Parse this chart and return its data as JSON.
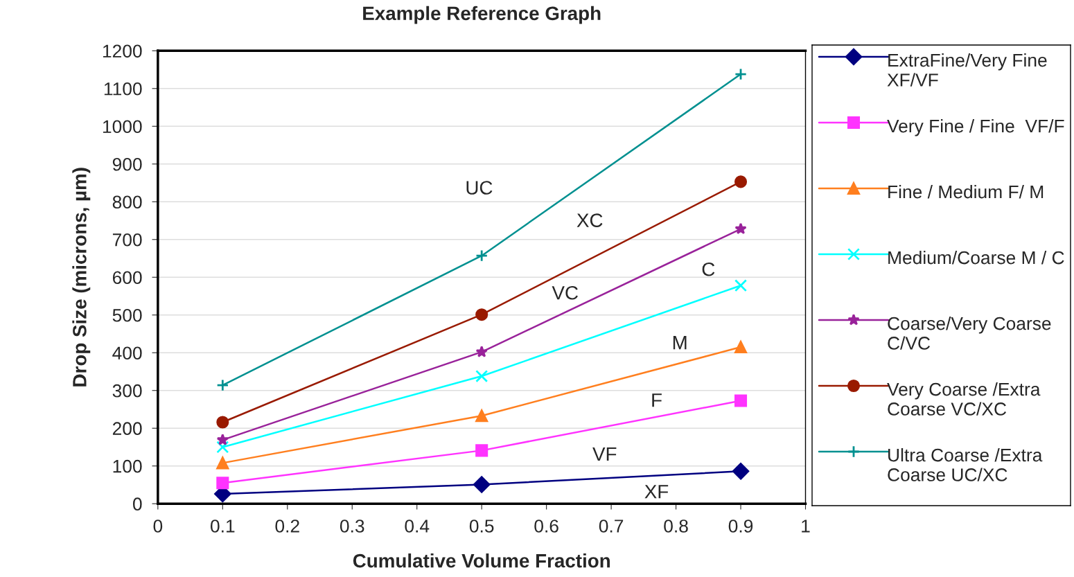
{
  "chart_data": {
    "type": "line",
    "title": "Example Reference Graph",
    "xlabel": "Cumulative Volume Fraction",
    "ylabel": "Drop Size (microns, µm)",
    "x": [
      0.1,
      0.5,
      0.9
    ],
    "series": [
      {
        "name": "ExtraFine/Very Fine XF/VF",
        "color": "#000080",
        "marker": "diamond",
        "values": [
          26,
          51,
          86
        ]
      },
      {
        "name": "Very Fine / Fine  VF/F",
        "color": "#ff33ff",
        "marker": "square",
        "values": [
          55,
          141,
          273
        ]
      },
      {
        "name": "Fine / Medium F/ M",
        "color": "#ff7f1f",
        "marker": "triangle",
        "values": [
          108,
          233,
          415
        ]
      },
      {
        "name": "Medium/Coarse M / C",
        "color": "#00ffff",
        "marker": "cross",
        "values": [
          150,
          338,
          578
        ]
      },
      {
        "name": "Coarse/Very Coarse  C/VC",
        "color": "#99229a",
        "marker": "star",
        "values": [
          169,
          402,
          728
        ]
      },
      {
        "name": "Very Coarse /Extra Coarse VC/XC",
        "color": "#991a00",
        "marker": "circle",
        "values": [
          216,
          501,
          853
        ]
      },
      {
        "name": "Ultra Coarse /Extra Coarse UC/XC",
        "color": "#009090",
        "marker": "plus",
        "values": [
          314,
          657,
          1138
        ]
      }
    ],
    "xlim": [
      0,
      1
    ],
    "xticks": [
      0,
      0.1,
      0.2,
      0.3,
      0.4,
      0.5,
      0.6,
      0.7,
      0.8,
      0.9,
      1
    ],
    "ylim": [
      0,
      1200
    ],
    "yticks": [
      0,
      100,
      200,
      300,
      400,
      500,
      600,
      700,
      800,
      900,
      1000,
      1100,
      1200
    ],
    "grid": "y",
    "legend": "right",
    "line_style": "solid",
    "annotations": [
      "UC",
      "XC",
      "VC",
      "C",
      "M",
      "F",
      "VF",
      "XF"
    ]
  }
}
